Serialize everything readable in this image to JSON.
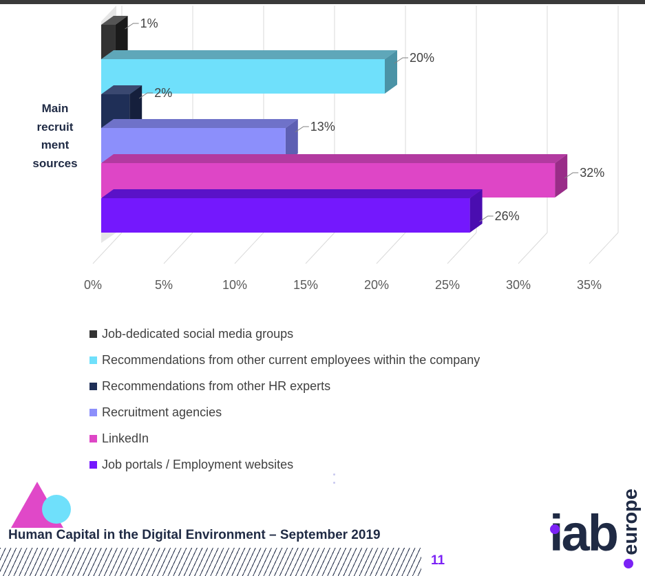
{
  "chart_data": {
    "type": "bar",
    "orientation": "horizontal",
    "y_axis_label": "Main recruitment sources",
    "y_axis_label_lines": [
      "Main",
      "recruit",
      "ment",
      "sources"
    ],
    "xlim": [
      0,
      35
    ],
    "x_ticks": [
      0,
      5,
      10,
      15,
      20,
      25,
      30,
      35
    ],
    "x_tick_labels": [
      "0%",
      "5%",
      "10%",
      "15%",
      "20%",
      "25%",
      "30%",
      "35%"
    ],
    "grid": true,
    "legend_position": "bottom",
    "series": [
      {
        "name": "Job-dedicated social media groups",
        "value": 1,
        "label": "1%",
        "color": "#333333",
        "top_color": "#555555",
        "side_color": "#1a1a1a"
      },
      {
        "name": "Recommendations from other current employees within the company",
        "value": 20,
        "label": "20%",
        "color": "#6fe0fb",
        "top_color": "#5fa7b9",
        "side_color": "#4b93a6"
      },
      {
        "name": "Recommendations from other HR experts",
        "value": 2,
        "label": "2%",
        "color": "#1f2f57",
        "top_color": "#3a4870",
        "side_color": "#151f3c"
      },
      {
        "name": "Recruitment agencies",
        "value": 13,
        "label": "13%",
        "color": "#8c8ffb",
        "top_color": "#6f72c9",
        "side_color": "#5d5fb3"
      },
      {
        "name": "LinkedIn",
        "value": 32,
        "label": "32%",
        "color": "#de46c6",
        "top_color": "#b23aa0",
        "side_color": "#992c88"
      },
      {
        "name": "Job portals / Employment websites",
        "value": 26,
        "label": "26%",
        "color": "#7418fd",
        "top_color": "#5a12c8",
        "side_color": "#4a0db0"
      }
    ]
  },
  "footer": {
    "title": "Human Capital in the Digital Environment – September 2019",
    "page_number": "11"
  },
  "logo": {
    "main": "iab",
    "sub": "europe"
  },
  "colors": {
    "accent_purple": "#7b22f5",
    "navy": "#1f2a44",
    "deco_pink": "#e048c8",
    "deco_cyan": "#6fe0fb"
  }
}
